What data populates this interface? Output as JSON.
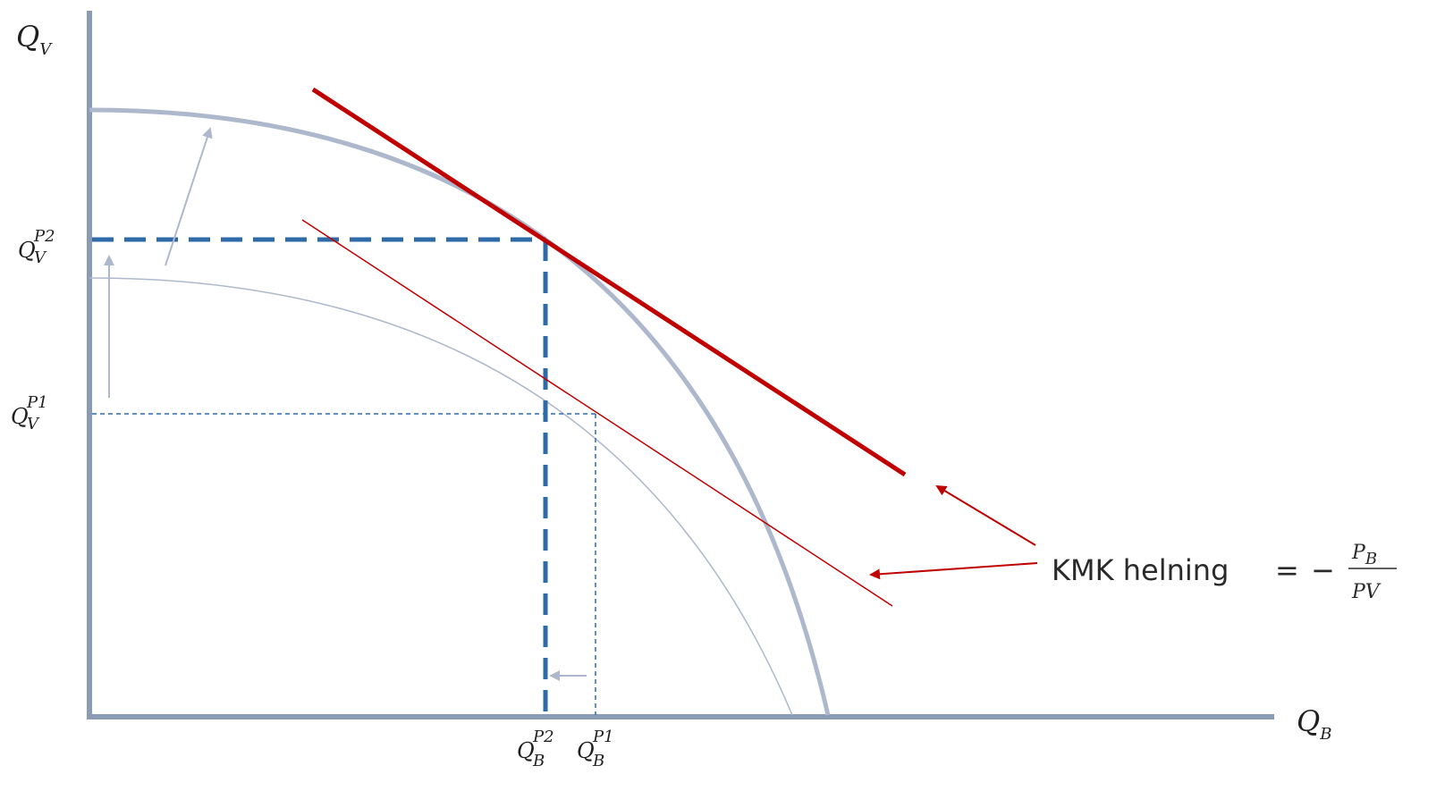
{
  "axes": {
    "y_label": {
      "main": "Q",
      "sub": "V"
    },
    "x_label": {
      "main": "Q",
      "sub": "B"
    }
  },
  "tick_labels": {
    "qv_p2": {
      "main": "Q",
      "sup": "P2",
      "sub": "V"
    },
    "qv_p1": {
      "main": "Q",
      "sup": "P1",
      "sub": "V"
    },
    "qb_p2": {
      "main": "Q",
      "sup": "P2",
      "sub": "B"
    },
    "qb_p1": {
      "main": "Q",
      "sup": "P1",
      "sub": "B"
    }
  },
  "annotation": {
    "text": "KMK helning",
    "equals": "=",
    "minus": "−",
    "numerator": {
      "main": "P",
      "sub": "B"
    },
    "denominator": "PV"
  },
  "colors": {
    "axis": "#8a9bb5",
    "ppf": "#aeb8cc",
    "price_line": "#c00000",
    "dashed": "#2e6aa8",
    "shift_arrow": "#aeb8cc"
  }
}
